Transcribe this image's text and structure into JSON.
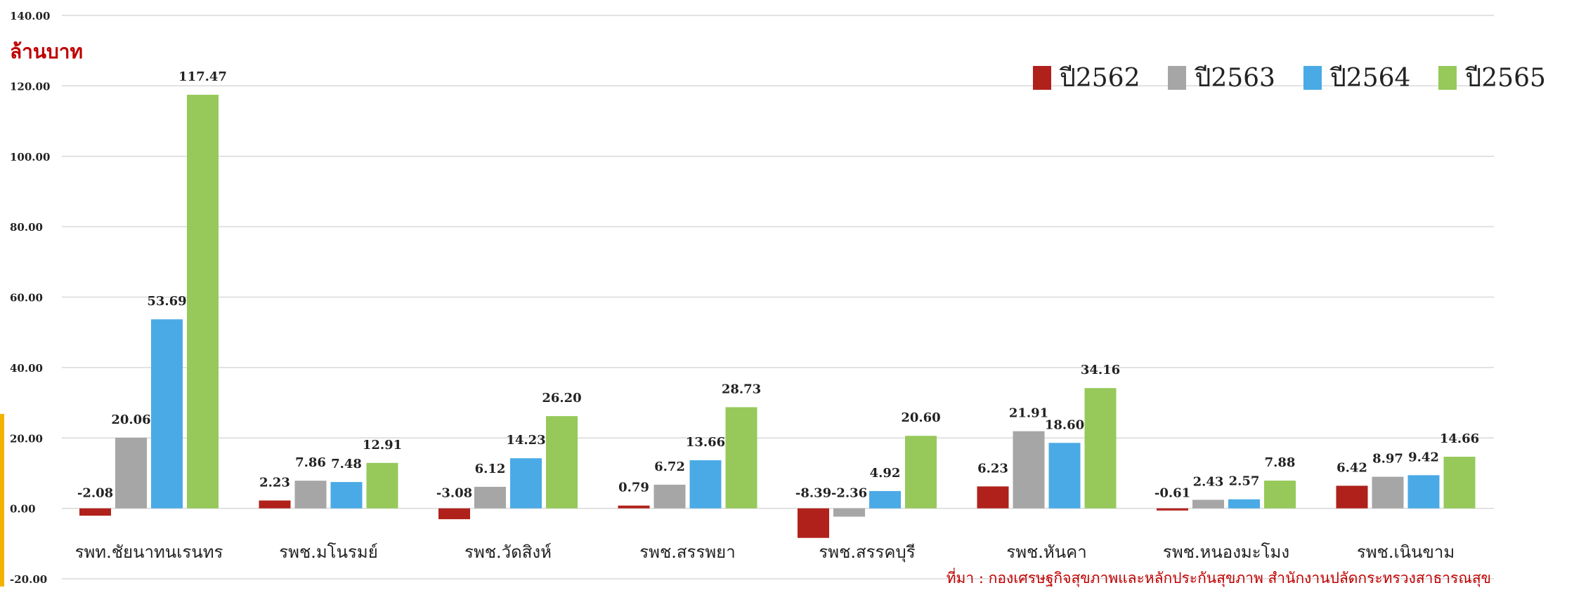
{
  "unit_label": "ล้านบาท",
  "source_note": "ที่มา : กองเศรษฐกิจสุขภาพและหลักประกันสุขภาพ สำนักงานปลัดกระทรวงสาธารณสุข",
  "colors": {
    "y2562": "#b0211b",
    "y2563": "#a6a6a6",
    "y2564": "#4aaae6",
    "y2565": "#96c95a",
    "grid": "#d9d9d9",
    "text": "#222222"
  },
  "chart_data": {
    "type": "bar",
    "title": "",
    "xlabel": "",
    "ylabel": "ล้านบาท",
    "ylim": [
      -20,
      140
    ],
    "yticks": [
      "-20.00",
      "0.00",
      "20.00",
      "40.00",
      "60.00",
      "80.00",
      "100.00",
      "120.00",
      "140.00"
    ],
    "ytick_values": [
      -20,
      0,
      20,
      40,
      60,
      80,
      100,
      120,
      140
    ],
    "grid": true,
    "legend_position": "top-right",
    "categories": [
      "รพท.ชัยนาทนเรนทร",
      "รพช.มโนรมย์",
      "รพช.วัดสิงห์",
      "รพช.สรรพยา",
      "รพช.สรรคบุรี",
      "รพช.หันคา",
      "รพช.หนองมะโมง",
      "รพช.เนินขาม"
    ],
    "series": [
      {
        "name": "ปี2562",
        "color": "#b0211b",
        "values": [
          -2.08,
          2.23,
          -3.08,
          0.79,
          -8.39,
          6.23,
          -0.61,
          6.42
        ],
        "labels": [
          "-2.08",
          "2.23",
          "-3.08",
          "0.79",
          "-8.39",
          "6.23",
          "-0.61",
          "6.42"
        ]
      },
      {
        "name": "ปี2563",
        "color": "#a6a6a6",
        "values": [
          20.06,
          7.86,
          6.12,
          6.72,
          -2.36,
          21.91,
          2.43,
          8.97
        ],
        "labels": [
          "20.06",
          "7.86",
          "6.12",
          "6.72",
          "-2.36",
          "21.91",
          "2.43",
          "8.97"
        ]
      },
      {
        "name": "ปี2564",
        "color": "#4aaae6",
        "values": [
          53.69,
          7.48,
          14.23,
          13.66,
          4.92,
          18.6,
          2.57,
          9.42
        ],
        "labels": [
          "53.69",
          "7.48",
          "14.23",
          "13.66",
          "4.92",
          "18.60",
          "2.57",
          "9.42"
        ]
      },
      {
        "name": "ปี2565",
        "color": "#96c95a",
        "values": [
          117.47,
          12.91,
          26.2,
          28.73,
          20.6,
          34.16,
          7.88,
          14.66
        ],
        "labels": [
          "117.47",
          "12.91",
          "26.20",
          "28.73",
          "20.60",
          "34.16",
          "7.88",
          "14.66"
        ]
      }
    ]
  }
}
